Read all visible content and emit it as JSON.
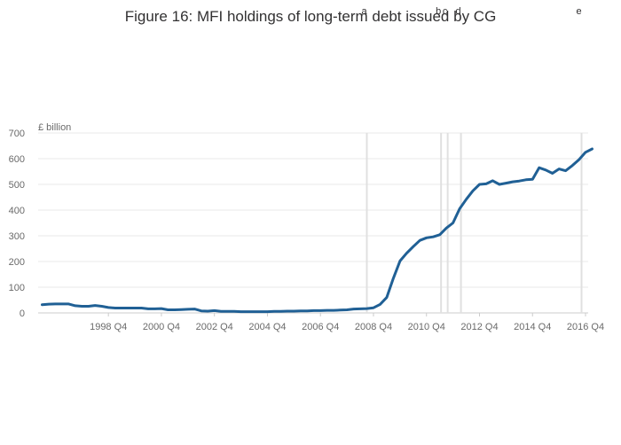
{
  "chart_data": {
    "type": "line",
    "title": "Figure 16: MFI holdings of long-term debt issued by CG",
    "ylabel": "£ billion",
    "xlabel": "",
    "xlim": [
      1996.1,
      2016.85
    ],
    "ylim": [
      0,
      700
    ],
    "y_ticks": [
      0,
      100,
      200,
      300,
      400,
      500,
      600,
      700
    ],
    "x_ticks": [
      {
        "x": 1998.75,
        "label": "1998 Q4"
      },
      {
        "x": 2000.75,
        "label": "2000 Q4"
      },
      {
        "x": 2002.75,
        "label": "2002 Q4"
      },
      {
        "x": 2004.75,
        "label": "2004 Q4"
      },
      {
        "x": 2006.75,
        "label": "2006 Q4"
      },
      {
        "x": 2008.75,
        "label": "2008 Q4"
      },
      {
        "x": 2010.75,
        "label": "2010 Q4"
      },
      {
        "x": 2012.75,
        "label": "2012 Q4"
      },
      {
        "x": 2014.75,
        "label": "2014 Q4"
      },
      {
        "x": 2016.75,
        "label": "2016 Q4"
      }
    ],
    "grid": true,
    "legend": "none",
    "line_color": "#206095",
    "marker_line_color": "#e0e0e0",
    "markers": [
      {
        "label": "a",
        "x": 2008.5
      },
      {
        "label": "b",
        "x": 2011.3
      },
      {
        "label": "c",
        "x": 2011.55
      },
      {
        "label": "d",
        "x": 2012.05
      },
      {
        "label": "e",
        "x": 2016.6
      }
    ],
    "series": [
      {
        "color": "#206095",
        "points": [
          [
            1996.25,
            32
          ],
          [
            1996.5,
            34
          ],
          [
            1996.75,
            35
          ],
          [
            1997.0,
            35
          ],
          [
            1997.25,
            35
          ],
          [
            1997.5,
            28
          ],
          [
            1997.75,
            26
          ],
          [
            1998.0,
            26
          ],
          [
            1998.25,
            29
          ],
          [
            1998.5,
            26
          ],
          [
            1998.75,
            21
          ],
          [
            1999.0,
            19
          ],
          [
            1999.25,
            19
          ],
          [
            1999.5,
            19
          ],
          [
            1999.75,
            19
          ],
          [
            2000.0,
            19
          ],
          [
            2000.25,
            16
          ],
          [
            2000.5,
            16
          ],
          [
            2000.75,
            17
          ],
          [
            2001.0,
            12
          ],
          [
            2001.25,
            12
          ],
          [
            2001.5,
            13
          ],
          [
            2001.75,
            14
          ],
          [
            2002.0,
            15
          ],
          [
            2002.25,
            8
          ],
          [
            2002.5,
            7
          ],
          [
            2002.75,
            9
          ],
          [
            2003.0,
            6
          ],
          [
            2003.25,
            6
          ],
          [
            2003.5,
            6
          ],
          [
            2003.75,
            5
          ],
          [
            2004.0,
            5
          ],
          [
            2004.25,
            5
          ],
          [
            2004.5,
            5
          ],
          [
            2004.75,
            5
          ],
          [
            2005.0,
            6
          ],
          [
            2005.25,
            6
          ],
          [
            2005.5,
            7
          ],
          [
            2005.75,
            7
          ],
          [
            2006.0,
            8
          ],
          [
            2006.25,
            8
          ],
          [
            2006.5,
            9
          ],
          [
            2006.75,
            9
          ],
          [
            2007.0,
            10
          ],
          [
            2007.25,
            10
          ],
          [
            2007.5,
            11
          ],
          [
            2007.75,
            12
          ],
          [
            2008.0,
            15
          ],
          [
            2008.25,
            16
          ],
          [
            2008.5,
            17
          ],
          [
            2008.75,
            20
          ],
          [
            2009.0,
            33
          ],
          [
            2009.25,
            60
          ],
          [
            2009.5,
            135
          ],
          [
            2009.75,
            202
          ],
          [
            2010.0,
            232
          ],
          [
            2010.25,
            258
          ],
          [
            2010.5,
            282
          ],
          [
            2010.75,
            292
          ],
          [
            2011.0,
            296
          ],
          [
            2011.25,
            304
          ],
          [
            2011.5,
            330
          ],
          [
            2011.75,
            350
          ],
          [
            2012.0,
            405
          ],
          [
            2012.25,
            442
          ],
          [
            2012.5,
            475
          ],
          [
            2012.75,
            500
          ],
          [
            2013.0,
            502
          ],
          [
            2013.25,
            514
          ],
          [
            2013.5,
            500
          ],
          [
            2013.75,
            505
          ],
          [
            2014.0,
            510
          ],
          [
            2014.25,
            513
          ],
          [
            2014.5,
            518
          ],
          [
            2014.75,
            520
          ],
          [
            2015.0,
            565
          ],
          [
            2015.25,
            556
          ],
          [
            2015.5,
            543
          ],
          [
            2015.75,
            560
          ],
          [
            2016.0,
            553
          ],
          [
            2016.25,
            573
          ],
          [
            2016.5,
            596
          ],
          [
            2016.75,
            625
          ],
          [
            2017.0,
            638
          ]
        ]
      }
    ]
  }
}
